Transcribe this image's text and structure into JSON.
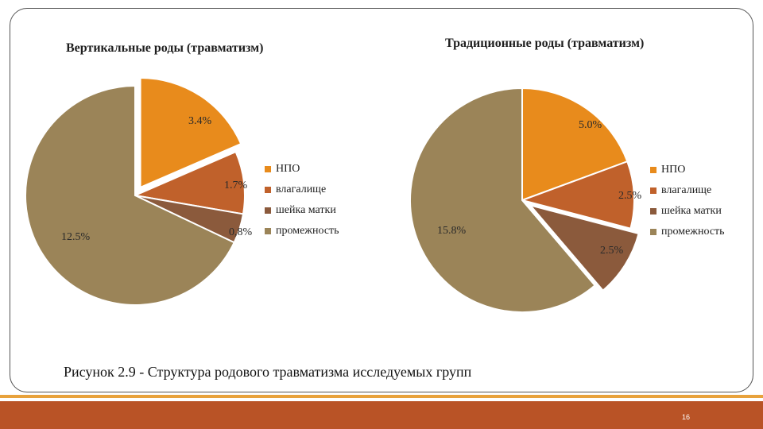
{
  "caption": "Рисунок 2.9 - Структура родового травматизма исследуемых групп",
  "page_number": "16",
  "colors": {
    "frame_border": "#555555",
    "bottom_band": "#b95326",
    "bottom_line": "#e8a23c"
  },
  "chart_data": [
    {
      "type": "pie",
      "title": "Вертикальные роды (травматизм)",
      "categories": [
        "НПО",
        "влагалище",
        "шейка матки",
        "промежность"
      ],
      "values": [
        3.4,
        1.7,
        0.8,
        12.5
      ],
      "data_labels": [
        "3.4%",
        "1.7%",
        "0,8%",
        "12.5%"
      ],
      "colors": [
        "#e88b1c",
        "#c0612b",
        "#8b5a3c",
        "#9b8458"
      ],
      "exploded_index": 0,
      "legend": "right"
    },
    {
      "type": "pie",
      "title": "Традиционные роды (травматизм)",
      "categories": [
        "НПО",
        "влагалище",
        "шейка матки",
        "промежность"
      ],
      "values": [
        5.0,
        2.5,
        2.5,
        15.8
      ],
      "data_labels": [
        "5.0%",
        "2.5%",
        "2.5%",
        "15.8%"
      ],
      "colors": [
        "#e88b1c",
        "#c0612b",
        "#8b5a3c",
        "#9b8458"
      ],
      "exploded_index": 2,
      "legend": "right"
    }
  ]
}
